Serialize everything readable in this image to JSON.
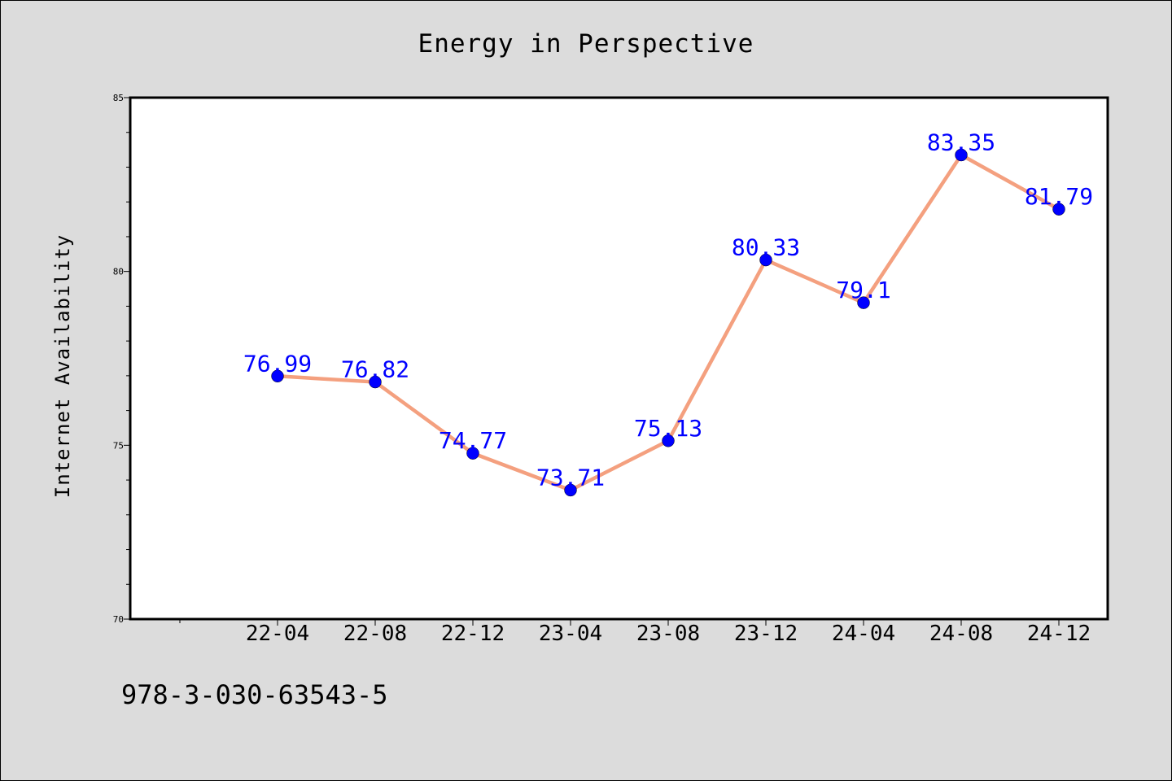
{
  "chart_data": {
    "type": "line",
    "title": "Energy in Perspective",
    "xlabel": "",
    "ylabel": "Internet Availability",
    "categories": [
      "22-04",
      "22-08",
      "22-12",
      "23-04",
      "23-08",
      "23-12",
      "24-04",
      "24-08",
      "24-12"
    ],
    "series": [
      {
        "values": [
          76.99,
          76.82,
          74.77,
          73.71,
          75.13,
          80.33,
          79.1,
          83.35,
          81.79
        ],
        "line_color": "#f4a07f",
        "marker_color": "#0000ff"
      }
    ],
    "ylim": [
      70,
      85
    ],
    "yticks": [
      70,
      75,
      80,
      85
    ],
    "grid": false,
    "legend": "none",
    "label_color": "#0000ff",
    "footnote": "978-3-030-63543-5"
  },
  "colors": {
    "background": "#dcdcdc",
    "plot_background": "#ffffff"
  }
}
